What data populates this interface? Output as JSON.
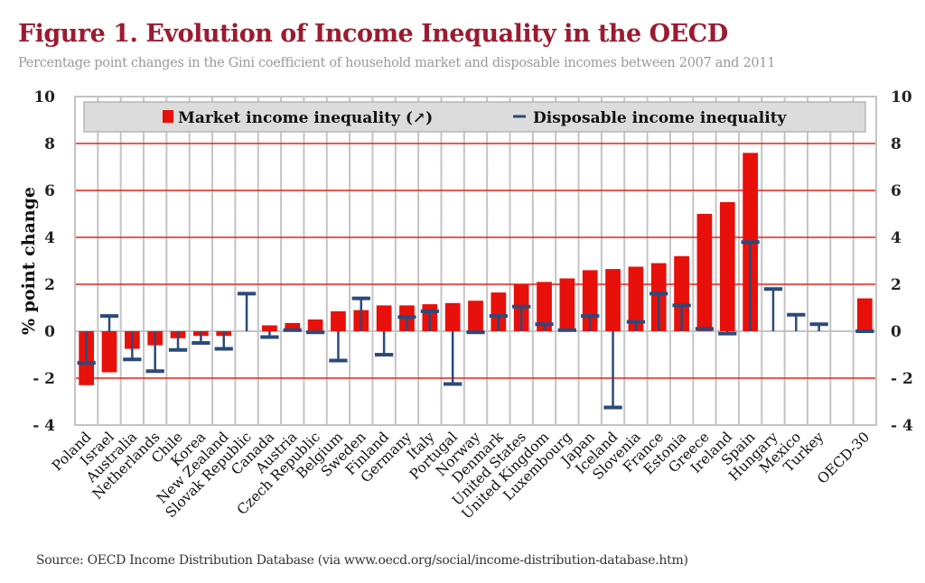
{
  "chart_data": {
    "type": "bar",
    "title": "Figure 1. Evolution of Income Inequality in the OECD",
    "subtitle": "Percentage point changes in the Gini coefficient of household market and disposable incomes between 2007 and 2011",
    "ylabel": "% point change",
    "ylim": [
      -4,
      10
    ],
    "yticks": [
      -4,
      -2,
      0,
      2,
      4,
      6,
      8,
      10
    ],
    "ytick_labels": [
      "- 4",
      "- 2",
      "0",
      "2",
      "4",
      "6",
      "8",
      "10"
    ],
    "grid": true,
    "legend_placement": "top",
    "categories": [
      "Poland",
      "Israel",
      "Australia",
      "Netherlands",
      "Chile",
      "Korea",
      "New Zealand",
      "Slovak Republic",
      "Canada",
      "Austria",
      "Czech Republic",
      "Belgium",
      "Sweden",
      "Finland",
      "Germany",
      "Italy",
      "Portugal",
      "Norway",
      "Denmark",
      "United States",
      "United Kingdom",
      "Luxembourg",
      "Japan",
      "Iceland",
      "Slovenia",
      "France",
      "Estonia",
      "Greece",
      "Ireland",
      "Spain",
      "Hungary",
      "Mexico",
      "Turkey",
      "",
      "OECD-30"
    ],
    "series": [
      {
        "name": "Market income inequality (↗)",
        "type": "bar",
        "color": "#e8100a",
        "values": [
          -2.3,
          -1.75,
          -0.75,
          -0.6,
          -0.3,
          -0.2,
          -0.2,
          null,
          0.25,
          0.35,
          0.5,
          0.85,
          0.9,
          1.1,
          1.1,
          1.15,
          1.2,
          1.3,
          1.65,
          2.0,
          2.1,
          2.25,
          2.6,
          2.65,
          2.75,
          2.9,
          3.2,
          5.0,
          5.5,
          7.6,
          null,
          null,
          null,
          null,
          1.4
        ]
      },
      {
        "name": "Disposable income inequality",
        "type": "marker",
        "color": "#2b4a7a",
        "values": [
          -1.35,
          0.65,
          -1.2,
          -1.7,
          -0.8,
          -0.5,
          -0.75,
          1.6,
          -0.25,
          0.05,
          -0.05,
          -1.25,
          1.4,
          -1.0,
          0.6,
          0.85,
          -2.25,
          -0.05,
          0.65,
          1.05,
          0.3,
          0.05,
          0.65,
          -3.25,
          0.4,
          1.6,
          1.1,
          0.1,
          -0.1,
          3.8,
          1.8,
          0.7,
          0.3,
          null,
          0.0
        ]
      }
    ]
  },
  "source": "Source: OECD Income Distribution Database (via www.oecd.org/social/income-distribution-database.htm)"
}
